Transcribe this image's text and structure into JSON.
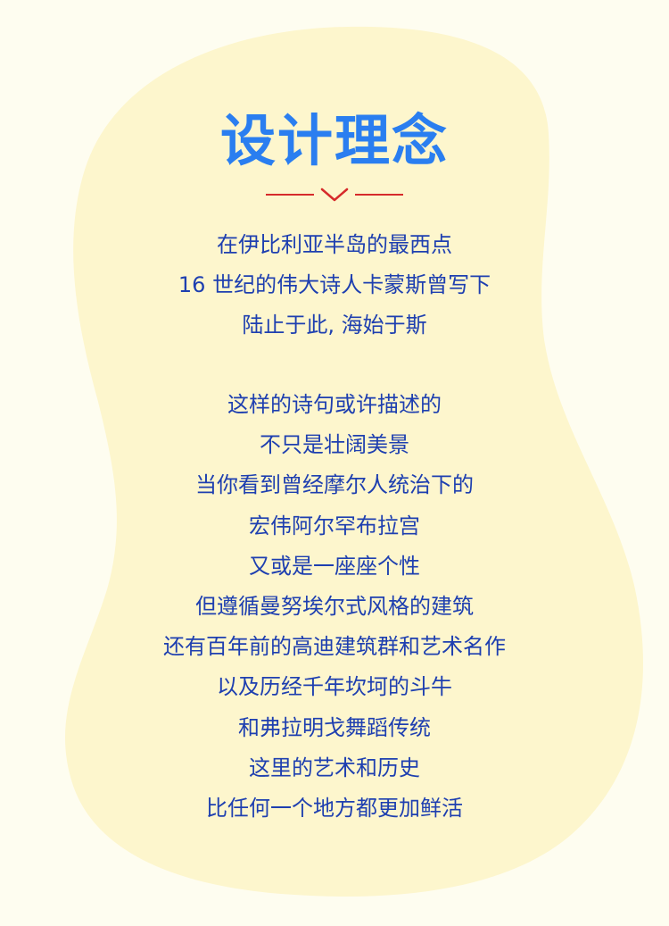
{
  "title": "设计理念",
  "colors": {
    "background": "#fefdf0",
    "blob": "#fdf6cd",
    "title": "#2a7ef0",
    "body_text": "#1e3fb0",
    "divider": "#d62b2b"
  },
  "icons": {
    "divider_icon": "chevron-down-icon"
  },
  "paragraph1": [
    "在伊比利亚半岛的最西点",
    "16 世纪的伟大诗人卡蒙斯曾写下",
    "陆止于此, 海始于斯"
  ],
  "paragraph2": [
    "这样的诗句或许描述的",
    "不只是壮阔美景",
    "当你看到曾经摩尔人统治下的",
    "宏伟阿尔罕布拉宫",
    "又或是一座座个性",
    "但遵循曼努埃尔式风格的建筑",
    "还有百年前的高迪建筑群和艺术名作",
    "以及历经千年坎坷的斗牛",
    "和弗拉明戈舞蹈传统",
    "这里的艺术和历史",
    "比任何一个地方都更加鲜活"
  ]
}
